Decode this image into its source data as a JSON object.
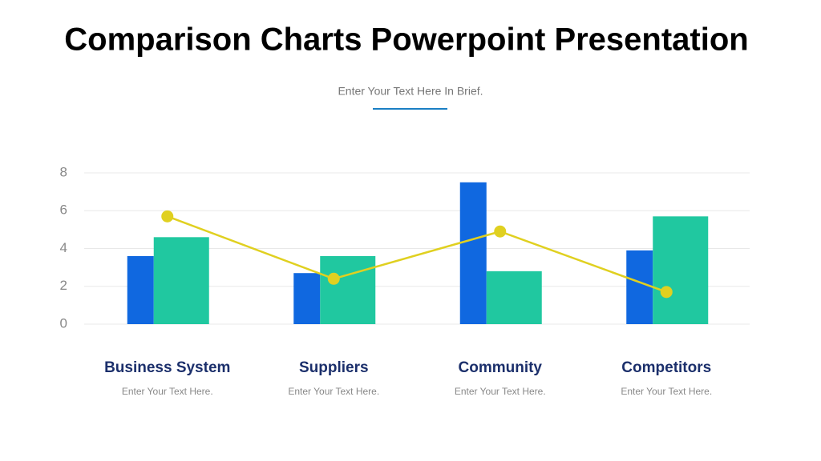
{
  "chart_data": {
    "type": "bar",
    "title": "Comparison Charts Powerpoint Presentation",
    "subtitle": "Enter Your Text Here In Brief.",
    "categories": [
      "Business System",
      "Suppliers",
      "Community",
      "Competitors"
    ],
    "descriptions": [
      "Enter Your Text Here.",
      "Enter Your Text Here.",
      "Enter Your Text Here.",
      "Enter Your Text Here."
    ],
    "series": [
      {
        "type": "bar",
        "color": "#1068e0",
        "values": [
          3.6,
          2.7,
          7.5,
          3.9
        ]
      },
      {
        "type": "bar",
        "color": "#20c8a0",
        "values": [
          4.6,
          3.6,
          2.8,
          5.7
        ]
      },
      {
        "type": "line",
        "color": "#e0d020",
        "values": [
          5.7,
          2.4,
          4.9,
          1.7
        ]
      }
    ],
    "ylim": [
      0,
      8
    ],
    "yticks": [
      0,
      2,
      4,
      6,
      8
    ],
    "grid": true
  }
}
